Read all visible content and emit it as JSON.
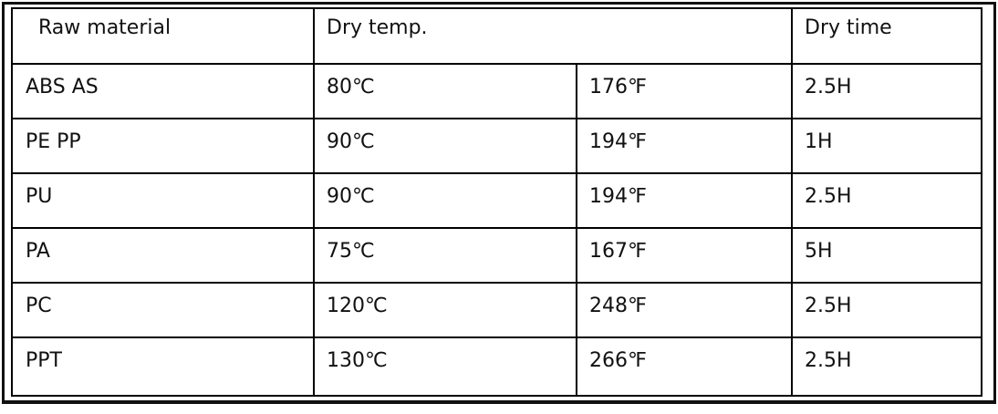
{
  "table": {
    "header": [
      "Raw material",
      "Dry temp.",
      "Dry time"
    ],
    "rows": [
      [
        "ABS AS",
        "80℃",
        "176℉",
        "2.5H"
      ],
      [
        "PE PP",
        "90℃",
        "194℉",
        "1H"
      ],
      [
        "PU",
        "90℃",
        "194℉",
        "2.5H"
      ],
      [
        "PA",
        "75℃",
        "167℉",
        "5H"
      ],
      [
        "PC",
        "120℃",
        "248℉",
        "2.5H"
      ],
      [
        "PPT",
        "130℃",
        "266℉",
        "2.5H"
      ]
    ]
  }
}
